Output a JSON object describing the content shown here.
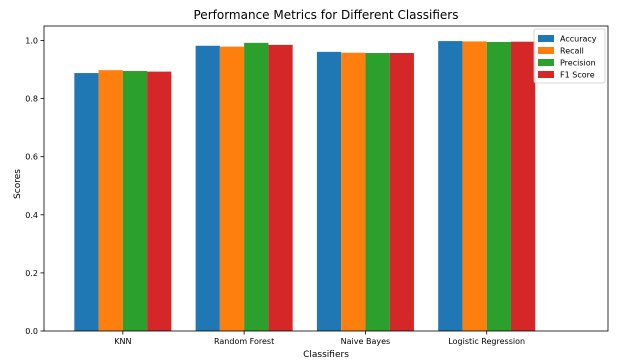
{
  "chart_data": {
    "type": "bar",
    "title": "Performance Metrics for Different Classifiers",
    "xlabel": "Classifiers",
    "ylabel": "Scores",
    "categories": [
      "KNN",
      "Random Forest",
      "Naive Bayes",
      "Logistic Regression"
    ],
    "ylim": [
      0,
      1.05
    ],
    "yticks": [
      "0.0",
      "0.2",
      "0.4",
      "0.6",
      "0.8",
      "1.0"
    ],
    "grid": false,
    "legend_position": "top-right",
    "series": [
      {
        "name": "Accuracy",
        "color": "#1f77b4",
        "values": [
          0.888,
          0.982,
          0.961,
          0.998
        ]
      },
      {
        "name": "Recall",
        "color": "#ff7f0e",
        "values": [
          0.898,
          0.979,
          0.958,
          0.997
        ]
      },
      {
        "name": "Precision",
        "color": "#2ca02c",
        "values": [
          0.895,
          0.992,
          0.957,
          0.995
        ]
      },
      {
        "name": "F1 Score",
        "color": "#d62728",
        "values": [
          0.893,
          0.985,
          0.957,
          0.996
        ]
      }
    ]
  }
}
